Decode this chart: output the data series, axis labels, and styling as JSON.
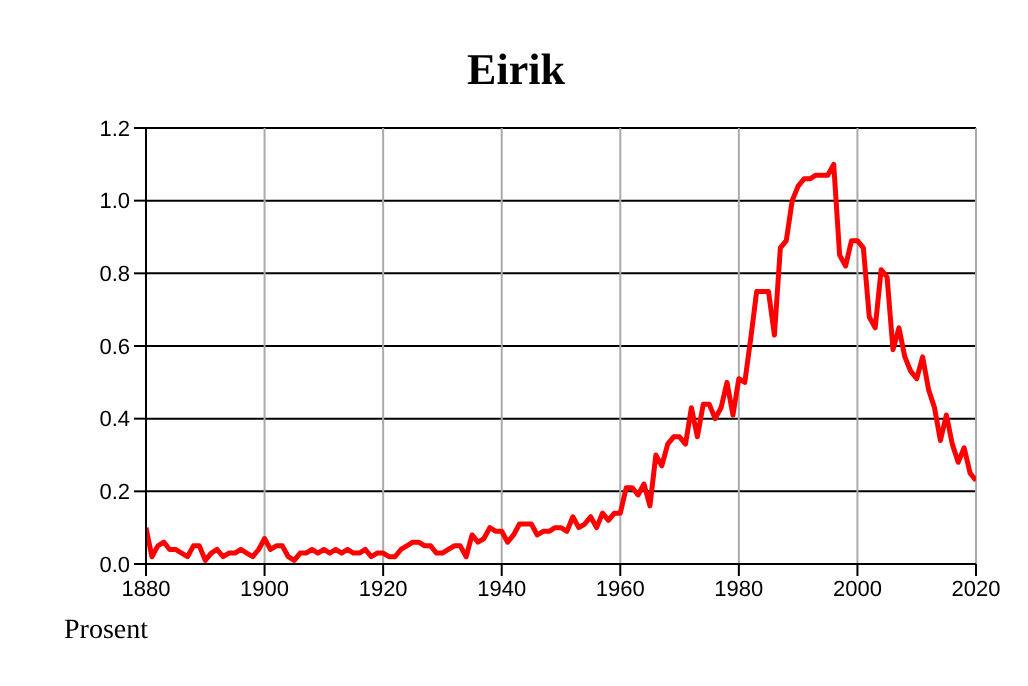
{
  "chart_data": {
    "type": "line",
    "title": "Eirik",
    "ylabel": "Prosent",
    "x": [
      1880,
      1881,
      1882,
      1883,
      1884,
      1885,
      1886,
      1887,
      1888,
      1889,
      1890,
      1891,
      1892,
      1893,
      1894,
      1895,
      1896,
      1897,
      1898,
      1899,
      1900,
      1901,
      1902,
      1903,
      1904,
      1905,
      1906,
      1907,
      1908,
      1909,
      1910,
      1911,
      1912,
      1913,
      1914,
      1915,
      1916,
      1917,
      1918,
      1919,
      1920,
      1921,
      1922,
      1923,
      1924,
      1925,
      1926,
      1927,
      1928,
      1929,
      1930,
      1931,
      1932,
      1933,
      1934,
      1935,
      1936,
      1937,
      1938,
      1939,
      1940,
      1941,
      1942,
      1943,
      1944,
      1945,
      1946,
      1947,
      1948,
      1949,
      1950,
      1951,
      1952,
      1953,
      1954,
      1955,
      1956,
      1957,
      1958,
      1959,
      1960,
      1961,
      1962,
      1963,
      1964,
      1965,
      1966,
      1967,
      1968,
      1969,
      1970,
      1971,
      1972,
      1973,
      1974,
      1975,
      1976,
      1977,
      1978,
      1979,
      1980,
      1981,
      1982,
      1983,
      1984,
      1985,
      1986,
      1987,
      1988,
      1989,
      1990,
      1991,
      1992,
      1993,
      1994,
      1995,
      1996,
      1997,
      1998,
      1999,
      2000,
      2001,
      2002,
      2003,
      2004,
      2005,
      2006,
      2007,
      2008,
      2009,
      2010,
      2011,
      2012,
      2013,
      2014,
      2015,
      2016,
      2017,
      2018,
      2019,
      2020
    ],
    "series": [
      {
        "color": "#ff0000",
        "values": [
          0.1,
          0.02,
          0.05,
          0.06,
          0.04,
          0.04,
          0.03,
          0.02,
          0.05,
          0.05,
          0.01,
          0.03,
          0.04,
          0.02,
          0.03,
          0.03,
          0.04,
          0.03,
          0.02,
          0.04,
          0.07,
          0.04,
          0.05,
          0.05,
          0.02,
          0.01,
          0.03,
          0.03,
          0.04,
          0.03,
          0.04,
          0.03,
          0.04,
          0.03,
          0.04,
          0.03,
          0.03,
          0.04,
          0.02,
          0.03,
          0.03,
          0.02,
          0.02,
          0.04,
          0.05,
          0.06,
          0.06,
          0.05,
          0.05,
          0.03,
          0.03,
          0.04,
          0.05,
          0.05,
          0.02,
          0.08,
          0.06,
          0.07,
          0.1,
          0.09,
          0.09,
          0.06,
          0.08,
          0.11,
          0.11,
          0.11,
          0.08,
          0.09,
          0.09,
          0.1,
          0.1,
          0.09,
          0.13,
          0.1,
          0.11,
          0.13,
          0.1,
          0.14,
          0.12,
          0.14,
          0.14,
          0.21,
          0.21,
          0.19,
          0.22,
          0.16,
          0.3,
          0.27,
          0.33,
          0.35,
          0.35,
          0.33,
          0.43,
          0.35,
          0.44,
          0.44,
          0.4,
          0.43,
          0.5,
          0.41,
          0.51,
          0.5,
          0.62,
          0.75,
          0.75,
          0.75,
          0.63,
          0.87,
          0.89,
          1.0,
          1.04,
          1.06,
          1.06,
          1.07,
          1.07,
          1.07,
          1.1,
          0.85,
          0.82,
          0.89,
          0.89,
          0.87,
          0.68,
          0.65,
          0.81,
          0.79,
          0.59,
          0.65,
          0.57,
          0.53,
          0.51,
          0.57,
          0.48,
          0.43,
          0.34,
          0.41,
          0.33,
          0.28,
          0.32,
          0.25,
          0.23
        ]
      }
    ],
    "xlim": [
      1880,
      2020
    ],
    "xticks": [
      1880,
      1900,
      1920,
      1940,
      1960,
      1980,
      2000,
      2020
    ],
    "ylim": [
      0,
      1.2
    ],
    "yticks": [
      {
        "value": 0,
        "label": "0.0"
      },
      {
        "value": 0.2,
        "label": "0.2"
      },
      {
        "value": 0.4,
        "label": "0.4"
      },
      {
        "value": 0.6,
        "label": "0.6"
      },
      {
        "value": 0.8,
        "label": "0.8"
      },
      {
        "value": 1.0,
        "label": "1.0"
      },
      {
        "value": 1.2,
        "label": "1.2"
      }
    ],
    "grid": true,
    "legend": false,
    "marker": "none",
    "line_style": "solid"
  }
}
